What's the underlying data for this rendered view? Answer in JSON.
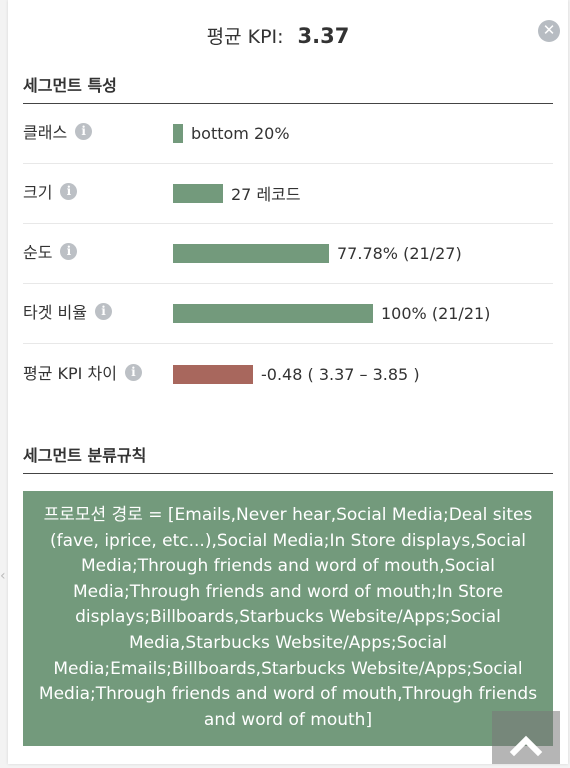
{
  "header": {
    "title": "평균 KPI:",
    "kpi_value": "3.37"
  },
  "close_icon": "close-icon",
  "segment_characteristics": {
    "title": "세그먼트 특성",
    "rows": [
      {
        "label": "클래스",
        "bar_fraction": 0.05,
        "bar_color": "#739a7c",
        "value": "bottom 20%"
      },
      {
        "label": "크기",
        "bar_fraction": 0.25,
        "bar_color": "#739a7c",
        "value": "27 레코드"
      },
      {
        "label": "순도",
        "bar_fraction": 0.7778,
        "bar_color": "#739a7c",
        "value": "77.78% (21/27)"
      },
      {
        "label": "타겟 비율",
        "bar_fraction": 1.0,
        "bar_color": "#739a7c",
        "value": "100% (21/21)"
      },
      {
        "label": "평균 KPI 차이",
        "bar_fraction": 0.4,
        "bar_color": "#a8675d",
        "value": "-0.48 ( 3.37 – 3.85 )"
      }
    ]
  },
  "segment_rules": {
    "title": "세그먼트 분류규칙",
    "rule_text": "프로모션 경로 = [Emails,Never hear,Social Media;Deal sites (fave, iprice, etc...),Social Media;In Store displays,Social Media;Through friends and word of mouth,Social Media;Through friends and word of mouth;In Store displays;Billboards,Starbucks Website/Apps;Social Media,Starbucks Website/Apps;Social Media;Emails;Billboards,Starbucks Website/Apps;Social Media;Through friends and word of mouth,Through friends and word of mouth]"
  },
  "colors": {
    "accent_green": "#739a7c",
    "negative_red": "#a8675d"
  }
}
